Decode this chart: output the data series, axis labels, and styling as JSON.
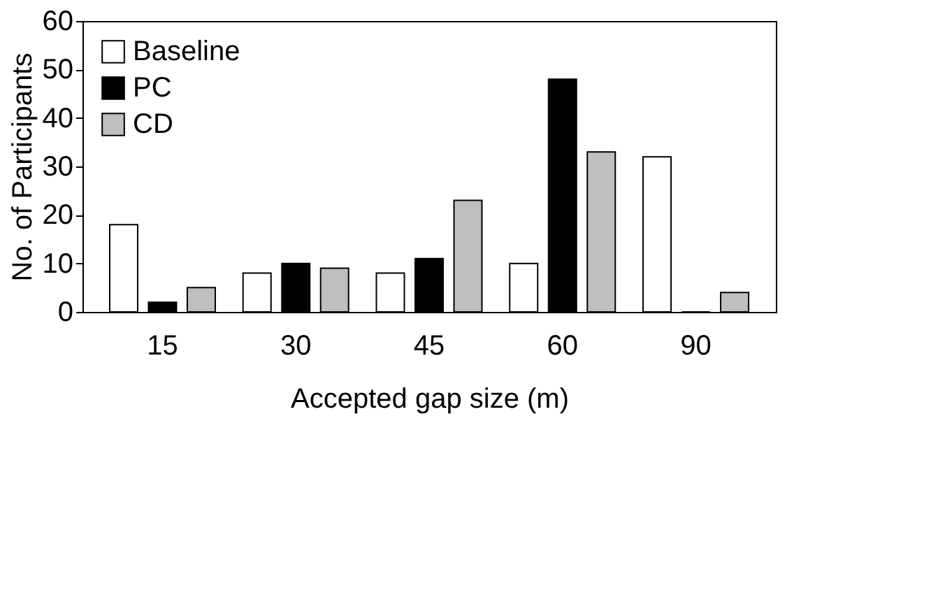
{
  "chart_data": {
    "type": "bar",
    "xlabel": "Accepted gap size (m)",
    "ylabel": "No. of Participants",
    "categories": [
      "15",
      "30",
      "45",
      "60",
      "90"
    ],
    "series": [
      {
        "name": "Baseline",
        "color": "#ffffff",
        "values": [
          18,
          8,
          8,
          10,
          32
        ]
      },
      {
        "name": "PC",
        "color": "#000000",
        "values": [
          2,
          10,
          11,
          48,
          0
        ]
      },
      {
        "name": "CD",
        "color": "#bfbfbf",
        "values": [
          5,
          9,
          23,
          33,
          4
        ]
      }
    ],
    "ylim": [
      0,
      60
    ],
    "yticks": [
      0,
      10,
      20,
      30,
      40,
      50,
      60
    ],
    "grid": false,
    "legend": "top left"
  }
}
